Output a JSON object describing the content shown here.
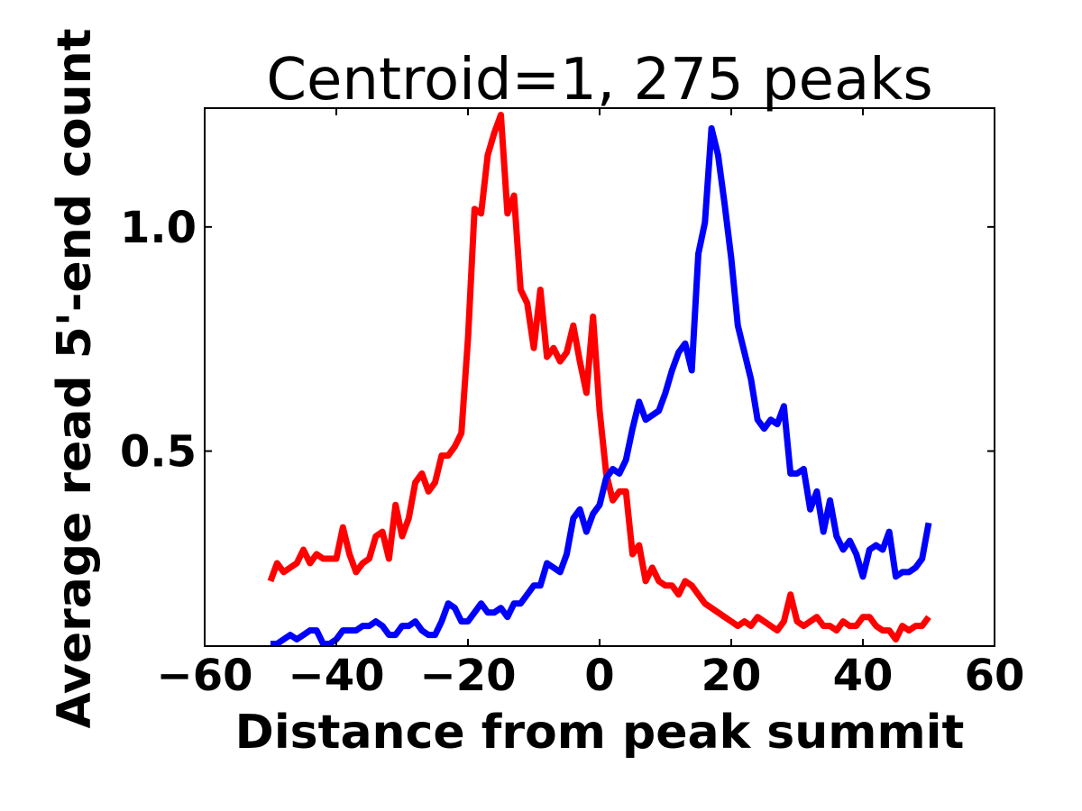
{
  "chart_data": {
    "type": "line",
    "title": "Centroid=1, 275 peaks",
    "xlabel": "Distance from peak summit",
    "ylabel": "Average read 5'-end count",
    "xlim": [
      -60,
      60
    ],
    "ylim": [
      0.065,
      1.265
    ],
    "xticks": [
      {
        "value": -60,
        "label": "−60"
      },
      {
        "value": -40,
        "label": "−40"
      },
      {
        "value": -20,
        "label": "−20"
      },
      {
        "value": 0,
        "label": "0"
      },
      {
        "value": 20,
        "label": "20"
      },
      {
        "value": 40,
        "label": "40"
      },
      {
        "value": 60,
        "label": "60"
      }
    ],
    "yticks": [
      {
        "value": 0.5,
        "label": "0.5"
      },
      {
        "value": 1.0,
        "label": "1.0"
      }
    ],
    "grid": false,
    "series": [
      {
        "color": "#ff0000",
        "x": [
          -50,
          -49,
          -48,
          -47,
          -46,
          -45,
          -44,
          -43,
          -42,
          -41,
          -40,
          -39,
          -38,
          -37,
          -36,
          -35,
          -34,
          -33,
          -32,
          -31,
          -30,
          -29,
          -28,
          -27,
          -26,
          -25,
          -24,
          -23,
          -22,
          -21,
          -20,
          -19,
          -18,
          -17,
          -16,
          -15,
          -14,
          -13,
          -12,
          -11,
          -10,
          -9,
          -8,
          -7,
          -6,
          -5,
          -4,
          -3,
          -2,
          -1,
          0,
          1,
          2,
          3,
          4,
          5,
          6,
          7,
          8,
          9,
          10,
          11,
          12,
          13,
          14,
          15,
          16,
          17,
          18,
          19,
          20,
          21,
          22,
          23,
          24,
          25,
          26,
          27,
          28,
          29,
          30,
          31,
          32,
          33,
          34,
          35,
          36,
          37,
          38,
          39,
          40,
          41,
          42,
          43,
          44,
          45,
          46,
          47,
          48,
          49,
          50
        ],
        "y": [
          0.21,
          0.25,
          0.23,
          0.24,
          0.25,
          0.28,
          0.25,
          0.27,
          0.26,
          0.26,
          0.26,
          0.33,
          0.27,
          0.23,
          0.25,
          0.26,
          0.31,
          0.32,
          0.26,
          0.38,
          0.31,
          0.35,
          0.43,
          0.45,
          0.41,
          0.43,
          0.49,
          0.49,
          0.51,
          0.54,
          0.75,
          1.04,
          1.03,
          1.16,
          1.21,
          1.25,
          1.03,
          1.07,
          0.86,
          0.83,
          0.73,
          0.86,
          0.71,
          0.73,
          0.7,
          0.72,
          0.78,
          0.7,
          0.63,
          0.8,
          0.59,
          0.45,
          0.39,
          0.41,
          0.41,
          0.27,
          0.29,
          0.21,
          0.24,
          0.21,
          0.2,
          0.2,
          0.18,
          0.21,
          0.2,
          0.18,
          0.16,
          0.15,
          0.14,
          0.13,
          0.12,
          0.11,
          0.12,
          0.11,
          0.13,
          0.12,
          0.11,
          0.1,
          0.12,
          0.18,
          0.12,
          0.11,
          0.12,
          0.13,
          0.11,
          0.11,
          0.1,
          0.12,
          0.11,
          0.11,
          0.13,
          0.13,
          0.11,
          0.1,
          0.1,
          0.08,
          0.11,
          0.1,
          0.11,
          0.11,
          0.13
        ]
      },
      {
        "color": "#0000ff",
        "x": [
          -50,
          -49,
          -48,
          -47,
          -46,
          -45,
          -44,
          -43,
          -42,
          -41,
          -40,
          -39,
          -38,
          -37,
          -36,
          -35,
          -34,
          -33,
          -32,
          -31,
          -30,
          -29,
          -28,
          -27,
          -26,
          -25,
          -24,
          -23,
          -22,
          -21,
          -20,
          -19,
          -18,
          -17,
          -16,
          -15,
          -14,
          -13,
          -12,
          -11,
          -10,
          -9,
          -8,
          -7,
          -6,
          -5,
          -4,
          -3,
          -2,
          -1,
          0,
          1,
          2,
          3,
          4,
          5,
          6,
          7,
          8,
          9,
          10,
          11,
          12,
          13,
          14,
          15,
          16,
          17,
          18,
          19,
          20,
          21,
          22,
          23,
          24,
          25,
          26,
          27,
          28,
          29,
          30,
          31,
          32,
          33,
          34,
          35,
          36,
          37,
          38,
          39,
          40,
          41,
          42,
          43,
          44,
          45,
          46,
          47,
          48,
          49,
          50
        ],
        "y": [
          0.07,
          0.07,
          0.08,
          0.09,
          0.08,
          0.09,
          0.1,
          0.1,
          0.07,
          0.07,
          0.08,
          0.1,
          0.1,
          0.1,
          0.11,
          0.11,
          0.12,
          0.11,
          0.09,
          0.09,
          0.11,
          0.11,
          0.12,
          0.1,
          0.09,
          0.09,
          0.12,
          0.16,
          0.15,
          0.12,
          0.12,
          0.14,
          0.16,
          0.14,
          0.14,
          0.15,
          0.13,
          0.16,
          0.16,
          0.18,
          0.2,
          0.2,
          0.25,
          0.24,
          0.23,
          0.27,
          0.35,
          0.37,
          0.32,
          0.36,
          0.38,
          0.44,
          0.46,
          0.45,
          0.48,
          0.55,
          0.61,
          0.57,
          0.58,
          0.59,
          0.63,
          0.68,
          0.72,
          0.74,
          0.68,
          0.94,
          1.01,
          1.22,
          1.16,
          1.05,
          0.93,
          0.78,
          0.72,
          0.66,
          0.57,
          0.55,
          0.57,
          0.56,
          0.6,
          0.45,
          0.45,
          0.46,
          0.37,
          0.41,
          0.32,
          0.39,
          0.31,
          0.28,
          0.3,
          0.27,
          0.22,
          0.28,
          0.29,
          0.28,
          0.32,
          0.22,
          0.23,
          0.23,
          0.24,
          0.26,
          0.34
        ]
      }
    ]
  }
}
